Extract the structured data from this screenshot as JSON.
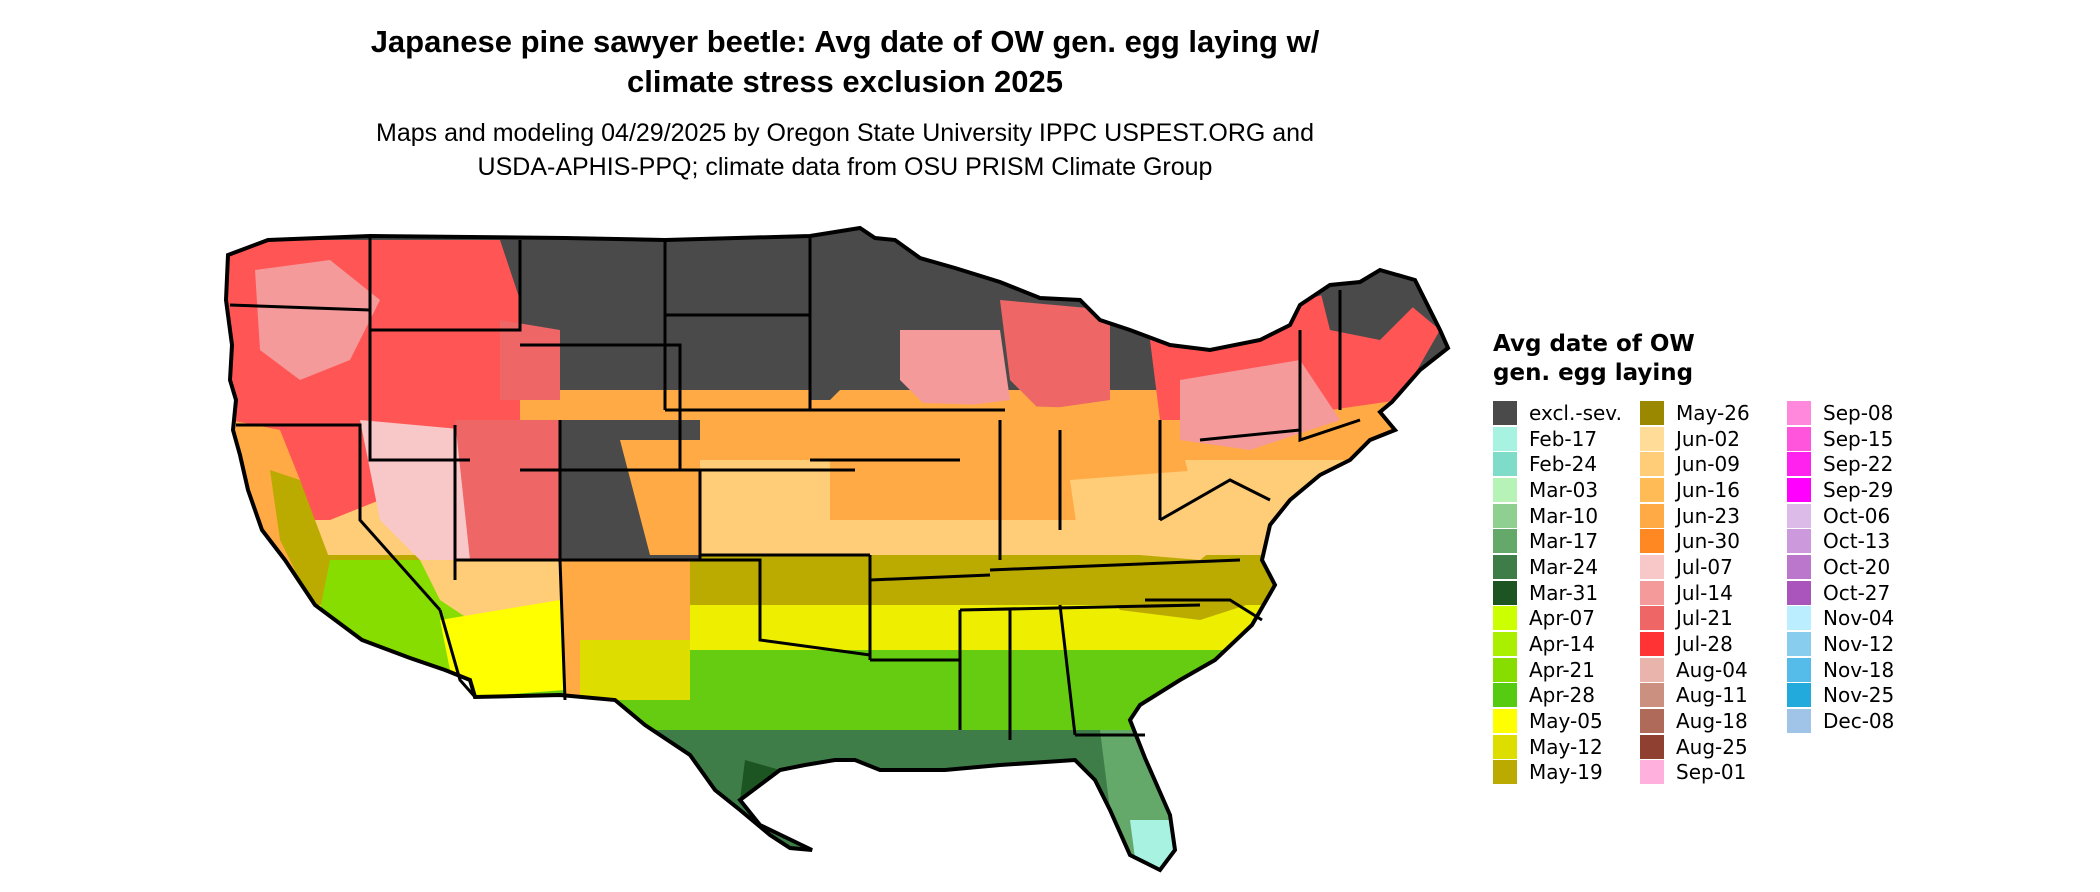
{
  "title_line1": "Japanese pine sawyer beetle: Avg date of OW gen. egg laying w/",
  "title_line2": "climate stress exclusion 2025",
  "subtitle_line1": "Maps and modeling 04/29/2025 by Oregon State University IPPC USPEST.ORG and",
  "subtitle_line2": "USDA-APHIS-PPQ; climate data from OSU PRISM Climate Group",
  "legend": {
    "title_line1": "Avg date of OW",
    "title_line2": "gen. egg laying",
    "items": [
      {
        "label": "excl.-sev.",
        "color": "#4a4a4a"
      },
      {
        "label": "Feb-17",
        "color": "#a8f2e2"
      },
      {
        "label": "Feb-24",
        "color": "#7fdcc8"
      },
      {
        "label": "Mar-03",
        "color": "#b7f2b7"
      },
      {
        "label": "Mar-10",
        "color": "#8fcf8f"
      },
      {
        "label": "Mar-17",
        "color": "#64a86a"
      },
      {
        "label": "Mar-24",
        "color": "#3e7d48"
      },
      {
        "label": "Mar-31",
        "color": "#1c5521"
      },
      {
        "label": "Apr-07",
        "color": "#ccff00"
      },
      {
        "label": "Apr-14",
        "color": "#aaee00"
      },
      {
        "label": "Apr-21",
        "color": "#88dd00"
      },
      {
        "label": "Apr-28",
        "color": "#55cc11"
      },
      {
        "label": "May-05",
        "color": "#ffff00"
      },
      {
        "label": "May-12",
        "color": "#dddd00"
      },
      {
        "label": "May-19",
        "color": "#bbaa00"
      },
      {
        "label": "May-26",
        "color": "#998800"
      },
      {
        "label": "Jun-02",
        "color": "#ffdd99"
      },
      {
        "label": "Jun-09",
        "color": "#ffcc77"
      },
      {
        "label": "Jun-16",
        "color": "#ffbb55"
      },
      {
        "label": "Jun-23",
        "color": "#ffaa44"
      },
      {
        "label": "Jun-30",
        "color": "#ff8822"
      },
      {
        "label": "Jul-07",
        "color": "#f8c8c8"
      },
      {
        "label": "Jul-14",
        "color": "#f49a9a"
      },
      {
        "label": "Jul-21",
        "color": "#ee6666"
      },
      {
        "label": "Jul-28",
        "color": "#ff3333"
      },
      {
        "label": "Aug-04",
        "color": "#e8b4ac"
      },
      {
        "label": "Aug-11",
        "color": "#cc9080"
      },
      {
        "label": "Aug-18",
        "color": "#b06a5a"
      },
      {
        "label": "Aug-25",
        "color": "#904030"
      },
      {
        "label": "Sep-01",
        "color": "#ffb0dd"
      },
      {
        "label": "Sep-08",
        "color": "#ff88dd"
      },
      {
        "label": "Sep-15",
        "color": "#ff55dd"
      },
      {
        "label": "Sep-22",
        "color": "#ff22ee"
      },
      {
        "label": "Sep-29",
        "color": "#ff00ff"
      },
      {
        "label": "Oct-06",
        "color": "#ddbbe8"
      },
      {
        "label": "Oct-13",
        "color": "#cc99dd"
      },
      {
        "label": "Oct-20",
        "color": "#bb77cc"
      },
      {
        "label": "Oct-27",
        "color": "#aa55bb"
      },
      {
        "label": "Nov-04",
        "color": "#bbeeff"
      },
      {
        "label": "Nov-12",
        "color": "#88ccee"
      },
      {
        "label": "Nov-18",
        "color": "#55bbe8"
      },
      {
        "label": "Nov-25",
        "color": "#22aadd"
      },
      {
        "label": "Dec-08",
        "color": "#a0c4e8"
      }
    ]
  }
}
